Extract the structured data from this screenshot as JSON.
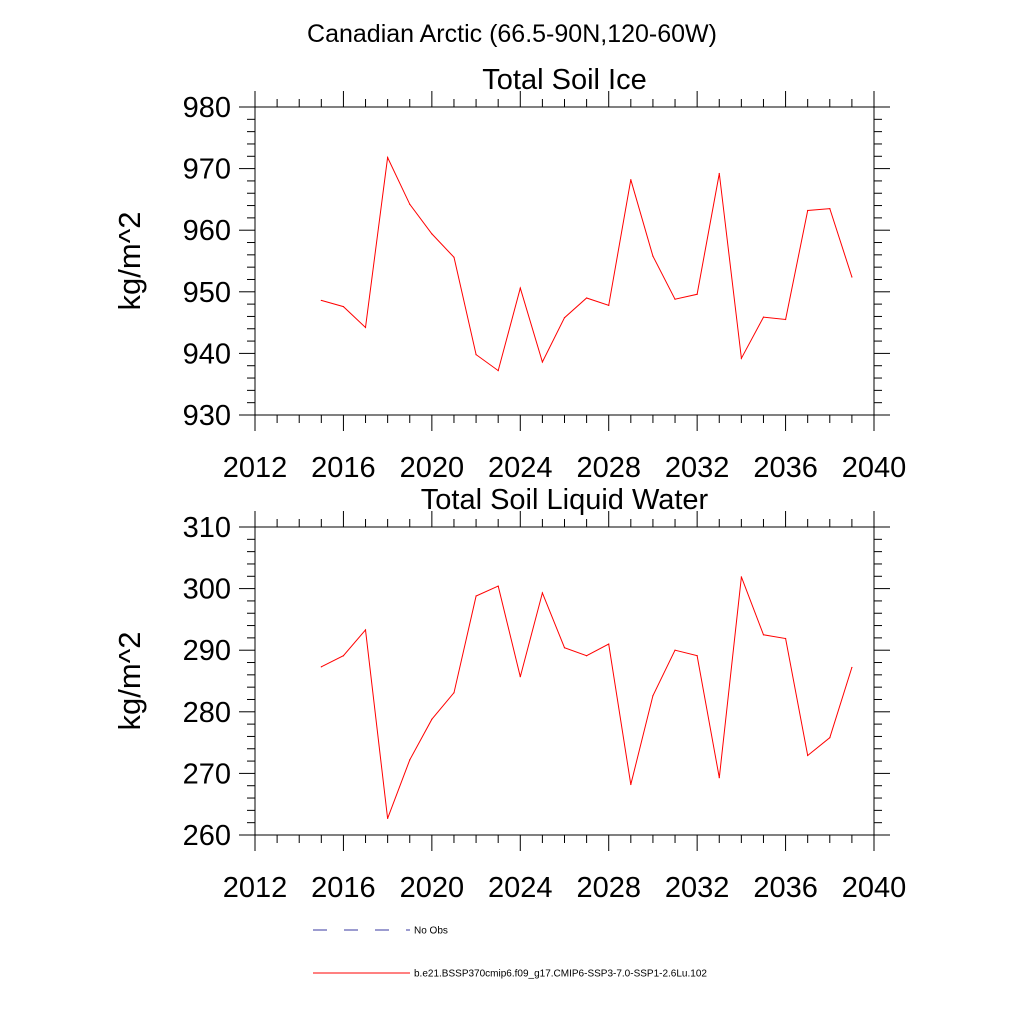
{
  "figure": {
    "title": "Canadian Arctic (66.5-90N,120-60W)"
  },
  "chart_data": [
    {
      "type": "line",
      "title": "Total Soil Ice",
      "xlabel": "",
      "ylabel": "kg/m^2",
      "xlim": [
        2012,
        2040
      ],
      "ylim": [
        930,
        980
      ],
      "xticks": [
        2012,
        2016,
        2020,
        2024,
        2028,
        2032,
        2036,
        2040
      ],
      "yticks": [
        930,
        940,
        950,
        960,
        970,
        980
      ],
      "grid": false,
      "x": [
        2015,
        2016,
        2017,
        2018,
        2019,
        2020,
        2021,
        2022,
        2023,
        2024,
        2025,
        2026,
        2027,
        2028,
        2029,
        2030,
        2031,
        2032,
        2033,
        2034,
        2035,
        2036,
        2037,
        2038,
        2039
      ],
      "series": [
        {
          "name": "b.e21.BSSP370cmip6.f09_g17.CMIP6-SSP3-7.0-SSP1-2.6Lu.102",
          "color": "#ff0000",
          "values": [
            948.6,
            947.6,
            944.2,
            971.8,
            964.2,
            959.4,
            955.6,
            939.8,
            937.2,
            950.6,
            938.6,
            945.8,
            949.0,
            947.8,
            968.2,
            955.8,
            948.8,
            949.6,
            969.2,
            939.2,
            945.9,
            945.5,
            963.2,
            963.5,
            952.4
          ]
        }
      ]
    },
    {
      "type": "line",
      "title": "Total Soil Liquid Water",
      "xlabel": "",
      "ylabel": "kg/m^2",
      "xlim": [
        2012,
        2040
      ],
      "ylim": [
        260,
        310
      ],
      "xticks": [
        2012,
        2016,
        2020,
        2024,
        2028,
        2032,
        2036,
        2040
      ],
      "yticks": [
        260,
        270,
        280,
        290,
        300,
        310
      ],
      "grid": false,
      "x": [
        2015,
        2016,
        2017,
        2018,
        2019,
        2020,
        2021,
        2022,
        2023,
        2024,
        2025,
        2026,
        2027,
        2028,
        2029,
        2030,
        2031,
        2032,
        2033,
        2034,
        2035,
        2036,
        2037,
        2038,
        2039
      ],
      "series": [
        {
          "name": "b.e21.BSSP370cmip6.f09_g17.CMIP6-SSP3-7.0-SSP1-2.6Lu.102",
          "color": "#ff0000",
          "values": [
            287.3,
            289.1,
            293.3,
            262.7,
            272.2,
            278.8,
            283.1,
            298.8,
            300.4,
            285.7,
            299.3,
            290.4,
            289.1,
            291.0,
            268.2,
            282.6,
            290.0,
            289.1,
            269.3,
            301.9,
            292.5,
            291.9,
            272.9,
            275.8,
            287.2
          ]
        }
      ]
    }
  ],
  "legend": {
    "placement": "bottom",
    "entries": [
      {
        "label": "No Obs",
        "color": "#3a3aa0",
        "style": "dashed"
      },
      {
        "label": "b.e21.BSSP370cmip6.f09_g17.CMIP6-SSP3-7.0-SSP1-2.6Lu.102",
        "color": "#ff0000",
        "style": "solid"
      }
    ]
  }
}
